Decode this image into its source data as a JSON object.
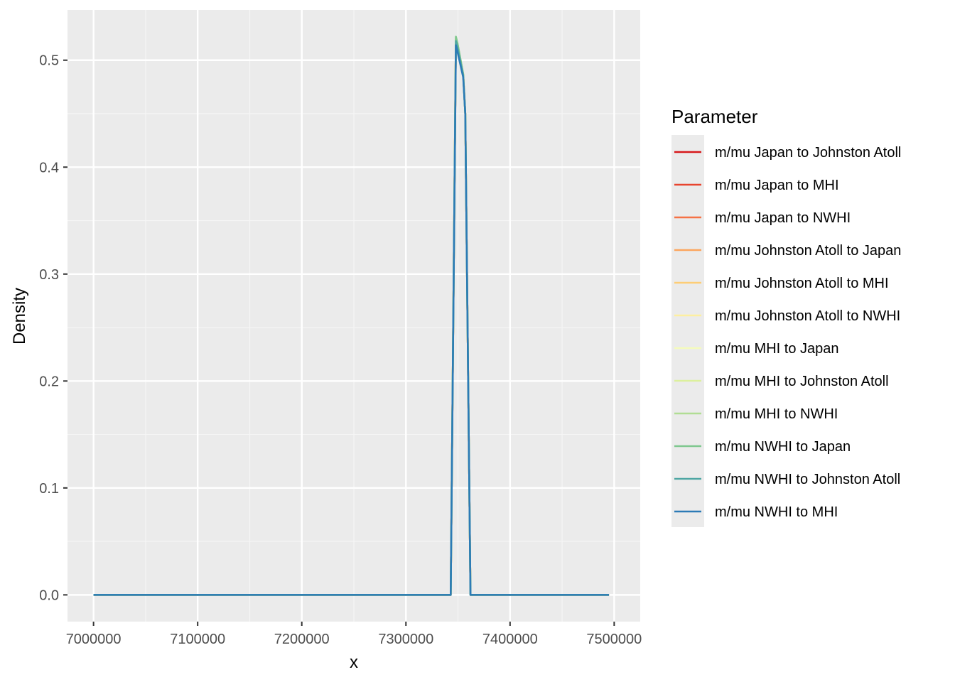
{
  "chart_data": {
    "type": "line",
    "title": "",
    "xlabel": "x",
    "ylabel": "Density",
    "xlim": [
      6975000,
      7525000
    ],
    "ylim": [
      -0.025,
      0.547
    ],
    "x_ticks": [
      7000000,
      7100000,
      7200000,
      7300000,
      7400000,
      7500000
    ],
    "x_tick_labels": [
      "7000000",
      "7100000",
      "7200000",
      "7300000",
      "7400000",
      "7500000"
    ],
    "y_ticks": [
      0.0,
      0.1,
      0.2,
      0.3,
      0.4,
      0.5
    ],
    "y_tick_labels": [
      "0.0",
      "0.1",
      "0.2",
      "0.3",
      "0.4",
      "0.5"
    ],
    "grid": true,
    "legend": {
      "title": "Parameter",
      "position": "right"
    },
    "series": [
      {
        "name": "m/mu Japan to Johnston Atoll",
        "color": "#d7191c",
        "x": [
          7000000,
          7343000,
          7348000,
          7349500,
          7355000,
          7357000,
          7362000,
          7495000
        ],
        "y": [
          0,
          0,
          0.52,
          0.515,
          0.487,
          0.45,
          0,
          0
        ]
      },
      {
        "name": "m/mu Japan to MHI",
        "color": "#e8452f",
        "x": [
          7000000,
          7343000,
          7348000,
          7349500,
          7355000,
          7357000,
          7362000,
          7495000
        ],
        "y": [
          0,
          0,
          0.52,
          0.515,
          0.487,
          0.45,
          0,
          0
        ]
      },
      {
        "name": "m/mu Japan to NWHI",
        "color": "#f57245",
        "x": [
          7000000,
          7343000,
          7348000,
          7349500,
          7355000,
          7357000,
          7362000,
          7495000
        ],
        "y": [
          0,
          0,
          0.52,
          0.515,
          0.487,
          0.45,
          0,
          0
        ]
      },
      {
        "name": "m/mu Johnston Atoll to Japan",
        "color": "#fca55d",
        "x": [
          7000000,
          7343000,
          7348000,
          7349500,
          7355000,
          7357000,
          7362000,
          7495000
        ],
        "y": [
          0,
          0,
          0.521,
          0.515,
          0.487,
          0.45,
          0,
          0
        ]
      },
      {
        "name": "m/mu Johnston Atoll to MHI",
        "color": "#fdcd76",
        "x": [
          7000000,
          7343000,
          7348000,
          7349500,
          7355000,
          7357000,
          7362000,
          7495000
        ],
        "y": [
          0,
          0,
          0.521,
          0.515,
          0.487,
          0.45,
          0,
          0
        ]
      },
      {
        "name": "m/mu Johnston Atoll to NWHI",
        "color": "#fdefa0",
        "x": [
          7000000,
          7343000,
          7348000,
          7349500,
          7355000,
          7357000,
          7362000,
          7495000
        ],
        "y": [
          0,
          0,
          0.521,
          0.515,
          0.487,
          0.45,
          0,
          0
        ]
      },
      {
        "name": "m/mu MHI to Japan",
        "color": "#f4fbbc",
        "x": [
          7000000,
          7343000,
          7348000,
          7349500,
          7355000,
          7357000,
          7362000,
          7495000
        ],
        "y": [
          0,
          0,
          0.521,
          0.515,
          0.487,
          0.45,
          0,
          0
        ]
      },
      {
        "name": "m/mu MHI to Johnston Atoll",
        "color": "#dcf09d",
        "x": [
          7000000,
          7343000,
          7348000,
          7349500,
          7355000,
          7357000,
          7362000,
          7495000
        ],
        "y": [
          0,
          0,
          0.521,
          0.515,
          0.487,
          0.45,
          0,
          0
        ]
      },
      {
        "name": "m/mu MHI to NWHI",
        "color": "#b1dd94",
        "x": [
          7000000,
          7343000,
          7348000,
          7349500,
          7355000,
          7357000,
          7362000,
          7495000
        ],
        "y": [
          0,
          0,
          0.522,
          0.516,
          0.487,
          0.45,
          0,
          0
        ]
      },
      {
        "name": "m/mu NWHI to Japan",
        "color": "#7fc88f",
        "x": [
          7000000,
          7343000,
          7348000,
          7349500,
          7355000,
          7357000,
          7362000,
          7495000
        ],
        "y": [
          0,
          0,
          0.522,
          0.516,
          0.487,
          0.45,
          0,
          0
        ]
      },
      {
        "name": "m/mu NWHI to Johnston Atoll",
        "color": "#4ea6a3",
        "x": [
          7000000,
          7343000,
          7348000,
          7349500,
          7355000,
          7357000,
          7362000,
          7495000
        ],
        "y": [
          0,
          0,
          0.518,
          0.512,
          0.486,
          0.45,
          0,
          0
        ]
      },
      {
        "name": "m/mu NWHI to MHI",
        "color": "#2c7bb6",
        "x": [
          7000000,
          7343000,
          7348000,
          7349500,
          7355000,
          7357000,
          7362000,
          7495000
        ],
        "y": [
          0,
          0,
          0.514,
          0.508,
          0.484,
          0.45,
          0,
          0
        ]
      }
    ]
  }
}
